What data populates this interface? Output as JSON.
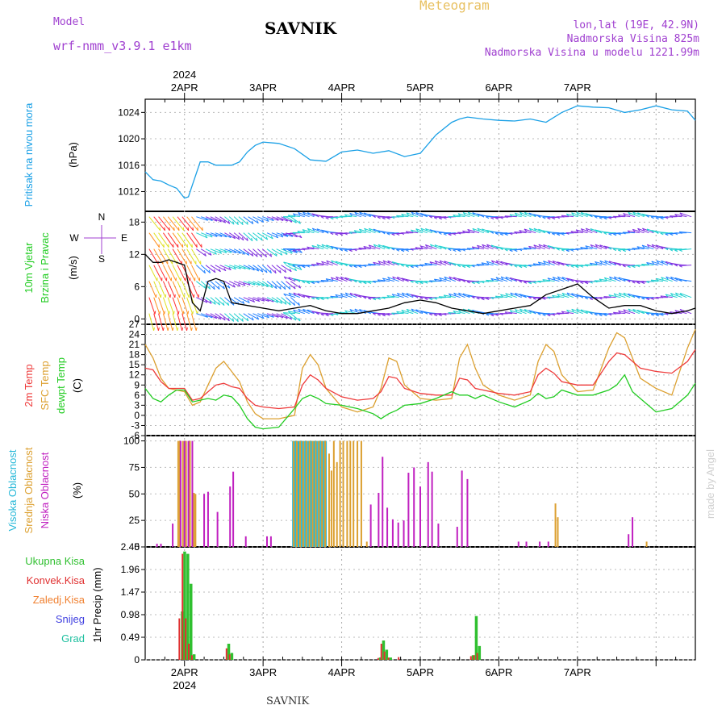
{
  "header": {
    "model_label": "Model",
    "model_name": "wrf-nmm_v3.9.1  e1km",
    "station": "SAVNIK",
    "chart_type": "Meteogram",
    "location": "lon,lat (19E, 42.9N)",
    "altitude": "Nadmorska Visina 825m",
    "model_altitude": "Nadmorska Visina u modelu 1221.99m"
  },
  "footer": {
    "station": "SAVNIK",
    "credit": "made by Angel"
  },
  "colors": {
    "pressure": "#1aa0e6",
    "t2m": "#ee3a3a",
    "sfc": "#dca030",
    "dewpt": "#22cc22",
    "high_cloud": "#26b8d8",
    "mid_cloud": "#dca030",
    "low_cloud": "#c020c0",
    "total_precip": "#30c030",
    "conv_precip": "#e03030",
    "frozen_precip": "#f08030",
    "snow": "#4040e0",
    "hail": "#20c0a0",
    "accent_purple": "#a040d0",
    "meteogram_title": "#e8c060"
  },
  "chart_data": [
    {
      "type": "line",
      "panel": "pressure",
      "ylabel": "Pritisak na nivou mora",
      "unit": "(hPa)",
      "ylim": [
        1009,
        1026
      ],
      "yticks": [
        1012,
        1016,
        1020,
        1024
      ],
      "x_unit": "days since 2024-04-01 00UTC",
      "series": [
        {
          "name": "Pritisak na nivou mora",
          "x": [
            0.5,
            0.6,
            0.7,
            0.8,
            0.9,
            1.0,
            1.05,
            1.1,
            1.2,
            1.3,
            1.4,
            1.5,
            1.6,
            1.7,
            1.8,
            1.9,
            2.0,
            2.2,
            2.4,
            2.6,
            2.8,
            3.0,
            3.2,
            3.4,
            3.6,
            3.8,
            4.0,
            4.2,
            4.4,
            4.5,
            4.6,
            4.8,
            5.0,
            5.2,
            5.4,
            5.6,
            5.8,
            6.0,
            6.2,
            6.4,
            6.6,
            6.8,
            7.0,
            7.2,
            7.4,
            7.5
          ],
          "values": [
            1015.0,
            1013.8,
            1013.6,
            1013.0,
            1012.5,
            1011.0,
            1011.2,
            1013.0,
            1016.5,
            1016.5,
            1016.0,
            1016.0,
            1016.0,
            1016.5,
            1018.0,
            1019.0,
            1019.5,
            1019.3,
            1018.5,
            1016.8,
            1016.6,
            1018.0,
            1018.3,
            1017.8,
            1018.2,
            1017.3,
            1017.8,
            1020.6,
            1022.5,
            1023.0,
            1023.3,
            1023.0,
            1022.8,
            1022.7,
            1023.0,
            1022.5,
            1024.0,
            1025.0,
            1024.8,
            1024.7,
            1024.0,
            1024.4,
            1025.0,
            1024.4,
            1024.2,
            1022.8
          ]
        }
      ]
    },
    {
      "type": "line",
      "panel": "wind",
      "ylabel": "10m Vjetar Brzina i Pravac",
      "unit": "(m/s)",
      "ylim": [
        -1,
        20
      ],
      "yticks": [
        0,
        6,
        12,
        18
      ],
      "compass_legend": [
        "N",
        "S",
        "W",
        "E"
      ],
      "x_unit": "days since 2024-04-01 00UTC",
      "series": [
        {
          "name": "wind speed",
          "x": [
            0.5,
            0.6,
            0.7,
            0.8,
            0.9,
            1.0,
            1.1,
            1.2,
            1.3,
            1.4,
            1.5,
            1.6,
            1.8,
            2.0,
            2.2,
            2.4,
            2.6,
            2.8,
            3.0,
            3.2,
            3.4,
            3.6,
            3.8,
            4.0,
            4.2,
            4.4,
            4.6,
            4.8,
            5.0,
            5.2,
            5.4,
            5.6,
            5.8,
            6.0,
            6.2,
            6.4,
            6.6,
            6.8,
            7.0,
            7.2,
            7.4,
            7.5
          ],
          "values": [
            12.0,
            10.5,
            10.5,
            11.0,
            10.5,
            10.0,
            3.0,
            1.5,
            7.0,
            7.5,
            7.0,
            3.0,
            2.5,
            2.0,
            1.5,
            2.0,
            2.5,
            1.5,
            1.0,
            1.0,
            1.5,
            2.0,
            3.0,
            3.5,
            3.0,
            2.0,
            1.5,
            1.0,
            1.5,
            2.0,
            2.5,
            4.5,
            5.5,
            6.5,
            4.0,
            2.0,
            2.5,
            2.5,
            1.5,
            1.0,
            1.5,
            2.0
          ]
        }
      ]
    },
    {
      "type": "line",
      "panel": "temperature",
      "ylabel": [
        "2m Temp",
        "SFC Temp",
        "dewpt Temp"
      ],
      "unit": "(C)",
      "ylim": [
        -6,
        27
      ],
      "yticks": [
        -6,
        -3,
        0,
        3,
        6,
        9,
        12,
        15,
        18,
        21,
        24,
        27
      ],
      "x_unit": "days since 2024-04-01 00UTC",
      "series": [
        {
          "name": "2m Temp",
          "x": [
            0.5,
            0.6,
            0.7,
            0.8,
            0.9,
            1.0,
            1.1,
            1.2,
            1.3,
            1.4,
            1.5,
            1.6,
            1.7,
            1.8,
            1.9,
            2.0,
            2.2,
            2.4,
            2.5,
            2.6,
            2.7,
            2.8,
            3.0,
            3.2,
            3.4,
            3.5,
            3.6,
            3.7,
            3.8,
            4.0,
            4.2,
            4.4,
            4.5,
            4.6,
            4.7,
            4.8,
            5.0,
            5.2,
            5.4,
            5.5,
            5.6,
            5.7,
            5.8,
            6.0,
            6.2,
            6.4,
            6.5,
            6.6,
            6.7,
            6.8,
            7.0,
            7.2,
            7.4,
            7.5
          ],
          "values": [
            14.0,
            13.5,
            10.0,
            8.0,
            8.0,
            8.0,
            4.5,
            5.0,
            7.0,
            9.0,
            9.5,
            8.5,
            8.0,
            5.0,
            3.0,
            2.5,
            2.0,
            2.5,
            9.0,
            12.0,
            10.5,
            8.0,
            5.5,
            4.5,
            5.0,
            7.0,
            11.5,
            11.0,
            8.0,
            6.5,
            6.0,
            6.0,
            11.0,
            10.5,
            8.0,
            7.5,
            6.5,
            6.0,
            7.0,
            12.0,
            14.0,
            12.5,
            10.0,
            9.0,
            9.0,
            16.0,
            18.5,
            18.0,
            16.0,
            14.0,
            13.0,
            12.5,
            16.0,
            19.5
          ]
        },
        {
          "name": "SFC Temp",
          "x": [
            0.5,
            0.6,
            0.7,
            0.8,
            0.9,
            1.0,
            1.1,
            1.2,
            1.3,
            1.4,
            1.5,
            1.6,
            1.7,
            1.8,
            1.9,
            2.0,
            2.2,
            2.4,
            2.5,
            2.6,
            2.7,
            2.8,
            3.0,
            3.2,
            3.4,
            3.5,
            3.6,
            3.7,
            3.8,
            4.0,
            4.2,
            4.4,
            4.5,
            4.6,
            4.7,
            4.8,
            5.0,
            5.2,
            5.4,
            5.5,
            5.6,
            5.7,
            5.8,
            6.0,
            6.2,
            6.4,
            6.5,
            6.6,
            6.7,
            6.8,
            7.0,
            7.2,
            7.4,
            7.5
          ],
          "values": [
            21.0,
            17.0,
            11.0,
            8.0,
            7.5,
            7.0,
            3.0,
            4.0,
            9.0,
            14.0,
            16.0,
            13.0,
            10.0,
            4.0,
            0.5,
            -1.0,
            -1.0,
            0.0,
            14.0,
            18.0,
            15.0,
            8.0,
            2.5,
            1.0,
            2.5,
            8.0,
            17.0,
            16.0,
            9.0,
            5.0,
            4.5,
            5.0,
            17.0,
            21.0,
            14.0,
            9.0,
            6.0,
            4.5,
            6.0,
            16.0,
            21.0,
            19.0,
            12.0,
            7.0,
            7.5,
            20.0,
            24.5,
            23.0,
            17.0,
            11.0,
            8.0,
            6.0,
            20.0,
            25.5
          ]
        },
        {
          "name": "dewpt Temp",
          "x": [
            0.5,
            0.6,
            0.7,
            0.8,
            0.9,
            1.0,
            1.1,
            1.2,
            1.3,
            1.4,
            1.5,
            1.6,
            1.7,
            1.8,
            1.9,
            2.0,
            2.2,
            2.4,
            2.5,
            2.6,
            2.7,
            2.8,
            3.0,
            3.2,
            3.4,
            3.5,
            3.6,
            3.7,
            3.8,
            4.0,
            4.2,
            4.4,
            4.5,
            4.6,
            4.7,
            4.8,
            5.0,
            5.2,
            5.4,
            5.5,
            5.6,
            5.7,
            5.8,
            6.0,
            6.2,
            6.4,
            6.5,
            6.6,
            6.7,
            6.8,
            7.0,
            7.2,
            7.4,
            7.5
          ],
          "values": [
            8.0,
            5.0,
            4.0,
            6.0,
            7.5,
            7.5,
            4.0,
            4.5,
            5.0,
            4.5,
            6.0,
            5.5,
            3.0,
            -1.0,
            -3.5,
            -4.0,
            -3.5,
            2.0,
            5.0,
            6.0,
            5.0,
            3.5,
            3.0,
            2.0,
            0.5,
            -1.0,
            0.5,
            1.5,
            3.0,
            3.5,
            5.0,
            7.0,
            6.0,
            6.0,
            5.0,
            6.0,
            4.0,
            2.5,
            4.5,
            6.5,
            5.0,
            5.5,
            7.5,
            6.0,
            6.0,
            7.5,
            9.0,
            12.0,
            7.0,
            5.0,
            1.0,
            2.0,
            6.0,
            9.5
          ]
        }
      ]
    },
    {
      "type": "bar",
      "panel": "cloud",
      "ylabel": [
        "Visoka Oblacnost",
        "Srednja Oblacnost",
        "Niska Oblacnost"
      ],
      "unit": "(%)",
      "ylim": [
        0,
        105
      ],
      "yticks": [
        0,
        25,
        50,
        75,
        100
      ],
      "x_unit": "days since 2024-04-01 00UTC",
      "series": [
        {
          "name": "Visoka Oblacnost",
          "x": [
            2.38,
            2.4,
            2.42,
            2.44,
            2.46,
            2.48,
            2.5,
            2.52,
            2.54,
            2.56,
            2.58,
            2.6,
            2.62,
            2.64,
            2.66,
            2.68,
            2.7,
            2.72,
            2.74,
            2.76,
            2.78,
            2.8
          ],
          "values": [
            100,
            100,
            100,
            100,
            100,
            100,
            100,
            100,
            100,
            100,
            100,
            100,
            100,
            100,
            100,
            100,
            100,
            100,
            100,
            100,
            100,
            100
          ]
        },
        {
          "name": "Srednja Oblacnost",
          "x": [
            0.92,
            0.94,
            0.98,
            1.02,
            1.07,
            1.12,
            1.14,
            2.39,
            2.43,
            2.47,
            2.51,
            2.55,
            2.59,
            2.63,
            2.67,
            2.71,
            2.75,
            2.79,
            2.84,
            2.87,
            2.9,
            2.94,
            2.98,
            3.02,
            3.07,
            3.11,
            3.15,
            3.2,
            3.25,
            3.32,
            5.72,
            5.75,
            6.88
          ],
          "values": [
            100,
            100,
            100,
            100,
            100,
            51,
            50,
            100,
            100,
            100,
            100,
            100,
            100,
            100,
            100,
            100,
            100,
            100,
            88,
            72,
            100,
            80,
            100,
            100,
            100,
            100,
            100,
            100,
            100,
            5,
            41,
            28,
            5
          ]
        },
        {
          "name": "Niska Oblacnost",
          "x": [
            0.65,
            0.7,
            0.85,
            0.95,
            1.0,
            1.05,
            1.1,
            1.25,
            1.3,
            1.42,
            1.58,
            1.62,
            1.78,
            2.05,
            2.1,
            3.37,
            3.47,
            3.52,
            3.58,
            3.65,
            3.72,
            3.79,
            3.85,
            3.92,
            4.0,
            4.1,
            4.15,
            4.23,
            4.47,
            4.53,
            4.6,
            5.25,
            5.35,
            5.52,
            5.63,
            6.65,
            6.7
          ],
          "values": [
            3,
            3,
            22,
            100,
            100,
            100,
            100,
            50,
            52,
            33,
            57,
            71,
            10,
            10,
            10,
            40,
            51,
            85,
            37,
            26,
            23,
            25,
            70,
            75,
            57,
            80,
            71,
            22,
            19,
            72,
            64,
            5,
            5,
            5,
            5,
            12,
            28
          ]
        }
      ]
    },
    {
      "type": "bar",
      "panel": "precipitation",
      "ylabel": "1hr Precip (mm)",
      "legend": [
        "Ukupna Kisa",
        "Konvek.Kisa",
        "Zaledj.Kisa",
        "Snijeg",
        "Grad"
      ],
      "ylim": [
        0,
        2.45
      ],
      "yticks": [
        0,
        0.49,
        0.98,
        1.47,
        1.96,
        2.45
      ],
      "x_unit": "days since 2024-04-01 00UTC",
      "series": [
        {
          "name": "Ukupna Kisa",
          "x": [
            0.97,
            1.0,
            1.04,
            1.08,
            1.12,
            1.56,
            1.6,
            3.49,
            3.53,
            3.57,
            3.62,
            4.67,
            4.71,
            4.75
          ],
          "values": [
            1.05,
            2.35,
            2.3,
            1.65,
            0.12,
            0.35,
            0.15,
            0.05,
            0.42,
            0.22,
            0.05,
            0.1,
            0.95,
            0.3
          ]
        },
        {
          "name": "Konvek.Kisa",
          "x": [
            0.95,
            0.99,
            1.03,
            1.07,
            1.11,
            1.55,
            1.59,
            3.48,
            3.52,
            3.56,
            3.61,
            3.74,
            4.66,
            4.7,
            4.74
          ],
          "values": [
            0.9,
            2.3,
            0.9,
            0.35,
            0.1,
            0.25,
            0.12,
            0.04,
            0.35,
            0.18,
            0.05,
            0.06,
            0.08,
            0.1,
            0.15
          ]
        }
      ]
    }
  ],
  "x_axis": {
    "year_label": "2024",
    "date_labels": [
      "2APR",
      "3APR",
      "4APR",
      "5APR",
      "6APR",
      "7APR"
    ]
  }
}
